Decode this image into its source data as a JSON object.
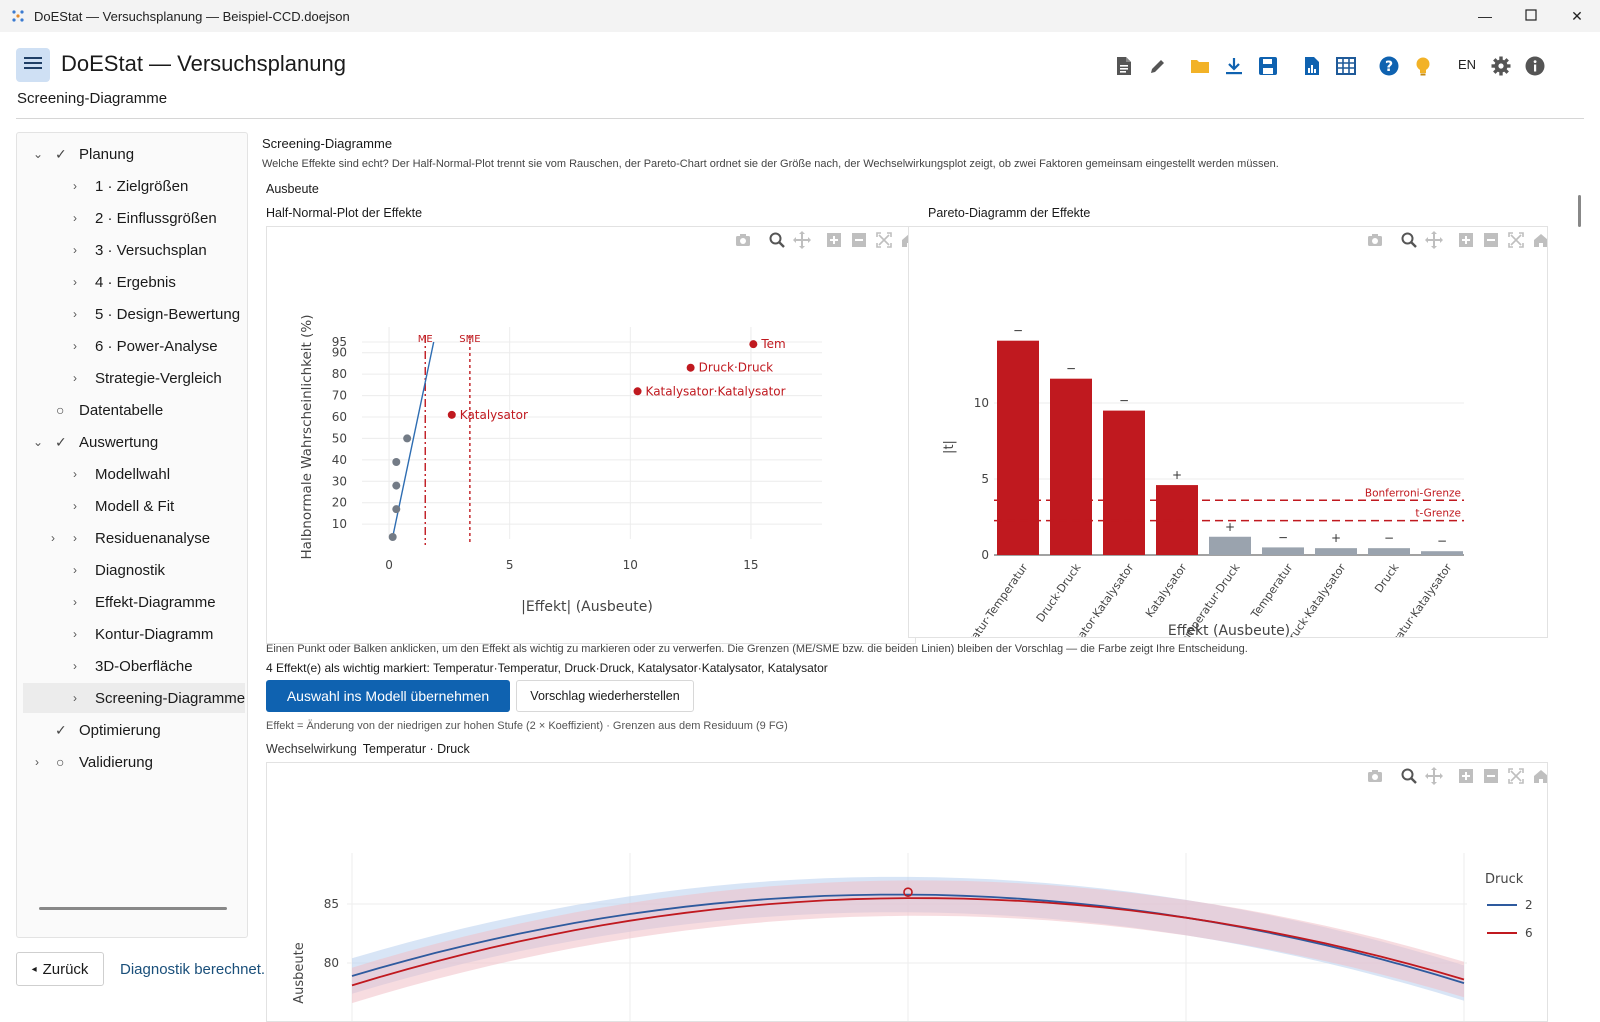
{
  "window": {
    "title": "DoEStat — Versuchsplanung — Beispiel-CCD.doejson",
    "app_icon": "doestat-logo-icon",
    "controls": [
      "minimize-icon",
      "maximize-icon",
      "close-icon"
    ]
  },
  "header": {
    "app_title": "DoEStat — Versuchsplanung",
    "breadcrumb": "Screening-Diagramme",
    "toolbar_icons": [
      "new-document-icon",
      "edit-icon",
      "open-folder-icon",
      "download-icon",
      "save-icon",
      "report-icon",
      "table-icon",
      "help-icon",
      "tip-lightbulb-icon",
      "settings-gear-icon",
      "info-icon"
    ],
    "language": "EN",
    "colors": {
      "accent": "#0f62b0",
      "menu_bg": "#cfe0f4",
      "significant": "#c0191f",
      "insignificant": "#9aa3ae"
    }
  },
  "sidebar": {
    "planung": "Planung",
    "planung_items": [
      "1 · Zielgrößen",
      "2 · Einflussgrößen",
      "3 · Versuchsplan",
      "4 · Ergebnis",
      "5 · Design-Bewertung",
      "6 · Power-Analyse",
      "Strategie-Vergleich"
    ],
    "datentabelle": "Datentabelle",
    "auswertung": "Auswertung",
    "auswertung_items": [
      "Modellwahl",
      "Modell & Fit",
      "Residuenanalyse",
      "Diagnostik",
      "Effekt-Diagramme",
      "Kontur-Diagramm",
      "3D-Oberfläche",
      "Screening-Diagramme"
    ],
    "optimierung": "Optimierung",
    "validierung": "Validierung",
    "selected": "Screening-Diagramme"
  },
  "footer": {
    "back_label": "Zurück",
    "status": "Diagnostik berechnet."
  },
  "main": {
    "section_title": "Screening-Diagramme",
    "description": "Welche Effekte sind echt? Der Half-Normal-Plot trennt sie vom Rauschen, der Pareto-Chart ordnet sie der Größe nach, der Wechselwirkungsplot zeigt, ob zwei Faktoren gemeinsam eingestellt werden müssen.",
    "response": "Ausbeute",
    "half_normal_title": "Half-Normal-Plot der Effekte",
    "pareto_title": "Pareto-Diagramm der Effekte",
    "click_hint": "Einen Punkt oder Balken anklicken, um den Effekt als wichtig zu markieren oder zu verwerfen. Die Grenzen (ME/SME bzw. die beiden Linien) bleiben der Vorschlag — die Farbe zeigt Ihre Entscheidung.",
    "marked_text": "4 Effekt(e) als wichtig markiert: Temperatur·Temperatur, Druck·Druck, Katalysator·Katalysator, Katalysator",
    "apply_button": "Auswahl ins Modell übernehmen",
    "restore_button": "Vorschlag wiederherstellen",
    "effect_note": "Effekt = Änderung von der niedrigen zur hohen Stufe (2 × Koeffizient) · Grenzen aus dem Residuum (9 FG)",
    "interaction_label": "Wechselwirkung",
    "interaction_value": "Temperatur · Druck",
    "modebar_icons": [
      "camera-icon",
      "zoom-icon",
      "pan-icon",
      "zoom-in-icon",
      "zoom-out-icon",
      "autoscale-icon",
      "home-icon"
    ]
  },
  "chart_data": [
    {
      "type": "scatter",
      "title": "",
      "xlabel": "|Effekt| (Ausbeute)",
      "ylabel": "Halbnormale Wahrscheinlichkeit (%)",
      "xlim": [
        -0.5,
        16.5
      ],
      "x_ticks": [
        0,
        5,
        10,
        15
      ],
      "y_ticks": [
        10,
        20,
        30,
        40,
        50,
        60,
        70,
        80,
        90,
        95
      ],
      "grid": true,
      "reference_lines": [
        {
          "name": "ME",
          "x": 1.5,
          "color": "#c0191f"
        },
        {
          "name": "SME",
          "x": 3.35,
          "color": "#c0191f"
        }
      ],
      "fit_line": {
        "x": [
          0.15,
          1.85
        ],
        "y": [
          4,
          95
        ],
        "color": "#2e6db2"
      },
      "points": [
        {
          "x": 0.15,
          "y": 4,
          "label": "",
          "color": "#737b86"
        },
        {
          "x": 0.3,
          "y": 17,
          "label": "",
          "color": "#737b86"
        },
        {
          "x": 0.3,
          "y": 28,
          "label": "",
          "color": "#737b86"
        },
        {
          "x": 0.3,
          "y": 39,
          "label": "",
          "color": "#737b86"
        },
        {
          "x": 0.75,
          "y": 50,
          "label": "",
          "color": "#737b86"
        },
        {
          "x": 2.6,
          "y": 61,
          "label": "Katalysator",
          "color": "#c0191f"
        },
        {
          "x": 10.3,
          "y": 72,
          "label": "Katalysator·Katalysator",
          "color": "#c0191f"
        },
        {
          "x": 12.5,
          "y": 83,
          "label": "Druck·Druck",
          "color": "#c0191f"
        },
        {
          "x": 15.1,
          "y": 94,
          "label": "Tem",
          "color": "#c0191f"
        }
      ]
    },
    {
      "type": "bar",
      "title": "",
      "xlabel": "Effekt (Ausbeute)",
      "ylabel": "|t|",
      "ylim": [
        0,
        14
      ],
      "y_ticks": [
        0,
        5,
        10
      ],
      "grid": true,
      "categories": [
        "Temperatur·Temperatur",
        "Druck·Druck",
        "Katalysator·Katalysator",
        "Katalysator",
        "Temperatur·Druck",
        "Temperatur",
        "Druck·Katalysator",
        "Druck",
        "Temperatur·Katalysator"
      ],
      "values": [
        14.1,
        11.6,
        9.5,
        4.6,
        1.2,
        0.5,
        0.45,
        0.45,
        0.25
      ],
      "signs": [
        "−",
        "−",
        "−",
        "+",
        "+",
        "−",
        "+",
        "−",
        "−"
      ],
      "significant": [
        true,
        true,
        true,
        true,
        false,
        false,
        false,
        false,
        false
      ],
      "thresholds": [
        {
          "name": "Bonferroni-Grenze",
          "value": 3.6,
          "color": "#c0191f"
        },
        {
          "name": "t-Grenze",
          "value": 2.26,
          "color": "#c0191f"
        }
      ]
    },
    {
      "type": "line",
      "title": "",
      "ylabel": "Ausbeute",
      "y_ticks": [
        80,
        85
      ],
      "legend_title": "Druck",
      "legend_position": "right",
      "series": [
        {
          "name": "2",
          "color": "#2e5a9e",
          "band_color": "#b8cfee",
          "x": [
            0,
            0.25,
            0.5,
            0.75,
            1
          ],
          "y": [
            78.9,
            84.1,
            85.8,
            84.2,
            78.3
          ]
        },
        {
          "name": "6",
          "color": "#c0191f",
          "band_color": "#f0c0c6",
          "x": [
            0,
            0.25,
            0.5,
            0.75,
            1
          ],
          "y": [
            78.1,
            83.7,
            85.5,
            84.4,
            78.6
          ]
        }
      ],
      "marker": {
        "x": 0.5,
        "y": 86.0
      }
    }
  ]
}
